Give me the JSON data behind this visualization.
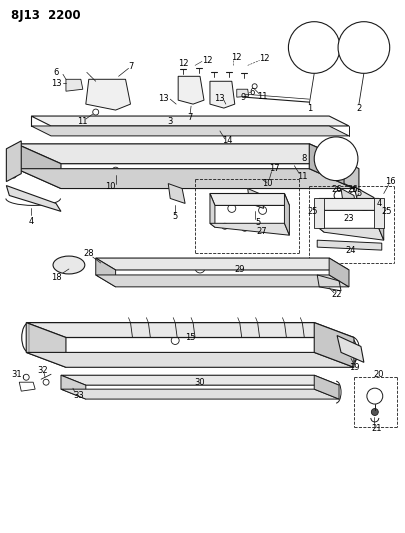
{
  "title": "8J13  2200",
  "bg_color": "#ffffff",
  "line_color": "#1a1a1a",
  "title_fontsize": 8.5,
  "label_fontsize": 6,
  "fig_width": 4.06,
  "fig_height": 5.33,
  "dpi": 100
}
